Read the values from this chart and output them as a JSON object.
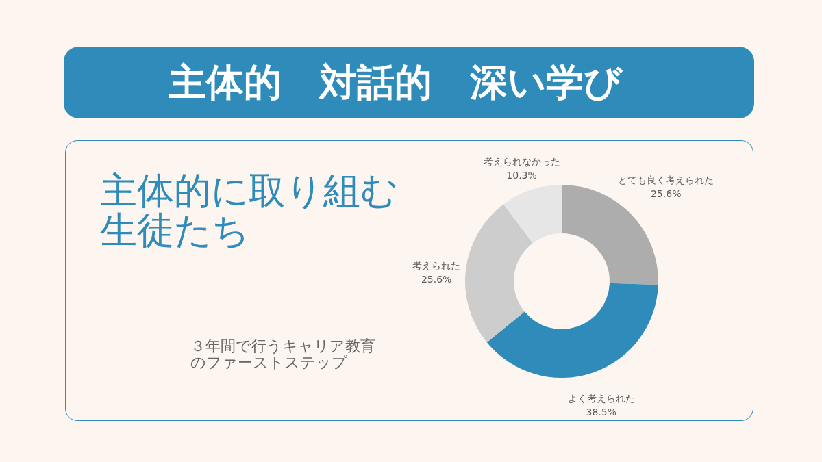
{
  "chart_data": {
    "type": "donut",
    "title": "主体的　対話的　深い学び",
    "subtitle": "主体的に取り組む生徒たち",
    "annotations": [
      "３年間で行うキャリア教育のファーストステップ"
    ],
    "categories": [
      "とても良く考えられた",
      "よく考えられた",
      "考えられた",
      "考えられなかった"
    ],
    "values": [
      25.6,
      38.5,
      25.6,
      10.3
    ],
    "value_labels": [
      "25.6%",
      "38.5%",
      "25.6%",
      "10.3%"
    ],
    "colors": [
      "#adadad",
      "#2e8bba",
      "#cdcdcd",
      "#e6e6e6"
    ]
  }
}
